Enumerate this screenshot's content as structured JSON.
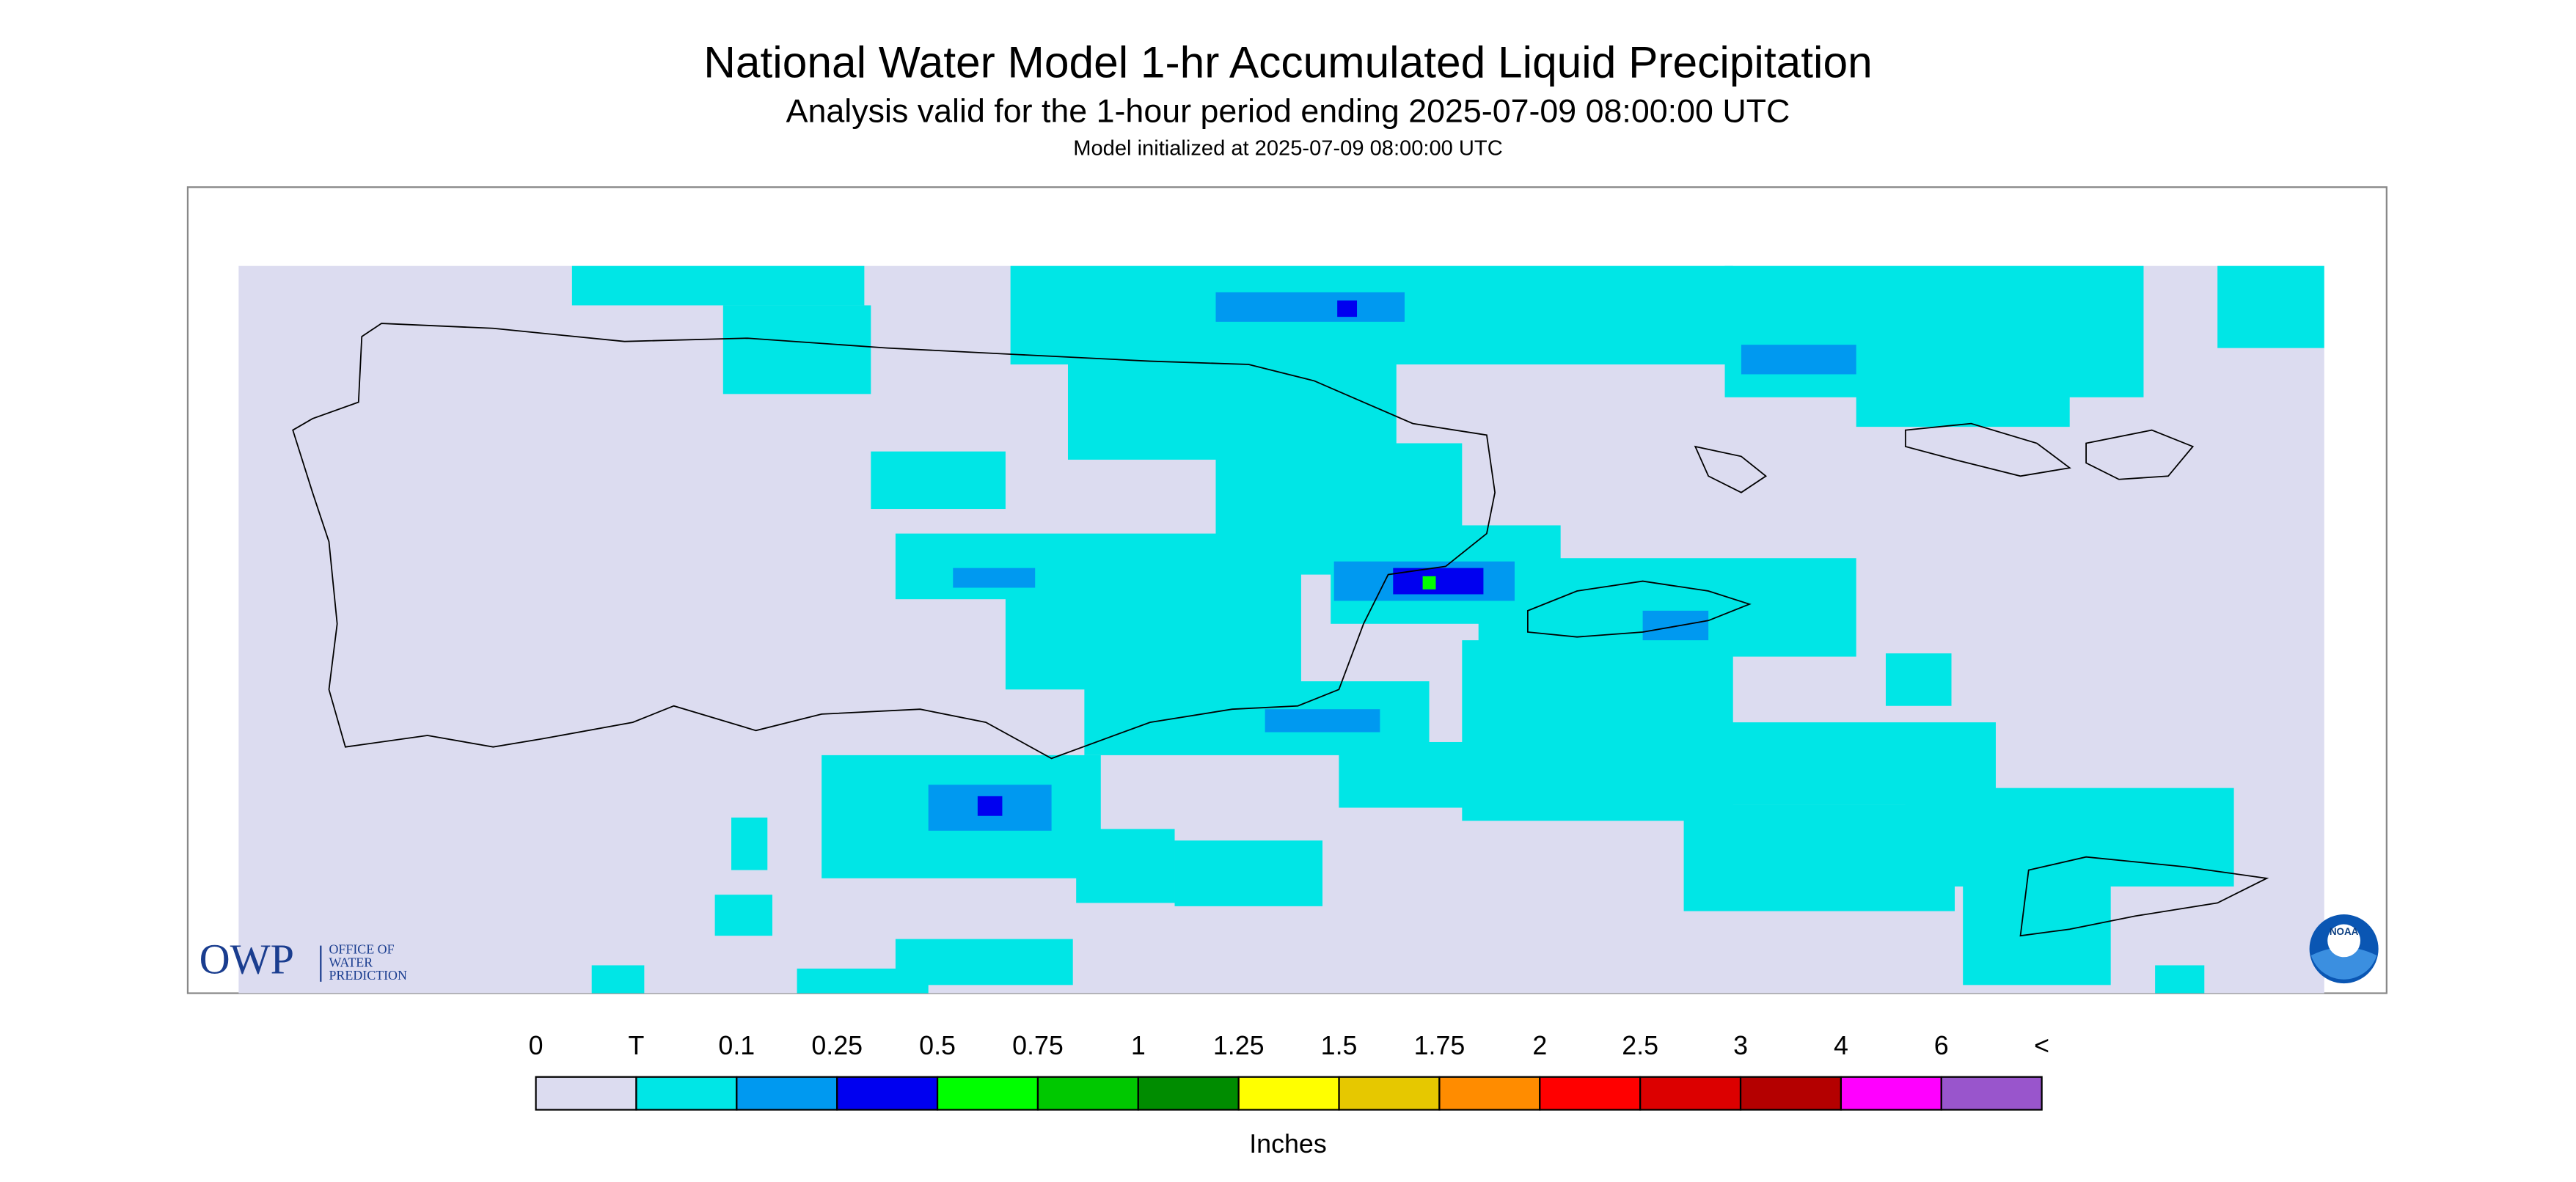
{
  "header": {
    "title": "National Water Model 1-hr Accumulated Liquid Precipitation",
    "subtitle": "Analysis valid for the 1-hour period ending 2025-07-09 08:00:00 UTC",
    "initialized": "Model initialized at 2025-07-09 08:00:00 UTC"
  },
  "logo": {
    "owp": "OWP",
    "lines": [
      "OFFICE OF",
      "WATER",
      "PREDICTION"
    ],
    "noaa": "NOAA"
  },
  "legend": {
    "labels": [
      "0",
      "T",
      "0.1",
      "0.25",
      "0.5",
      "0.75",
      "1",
      "1.25",
      "1.5",
      "1.75",
      "2",
      "2.5",
      "3",
      "4",
      "6",
      "<"
    ],
    "colors": [
      "#dcdcf0",
      "#00e6e6",
      "#0099f0",
      "#0000f0",
      "#00ff00",
      "#00c800",
      "#008c00",
      "#ffff00",
      "#e6c800",
      "#ff8c00",
      "#ff0000",
      "#dc0000",
      "#b40000",
      "#ff00ff",
      "#9955cc"
    ],
    "unit": "Inches"
  }
}
